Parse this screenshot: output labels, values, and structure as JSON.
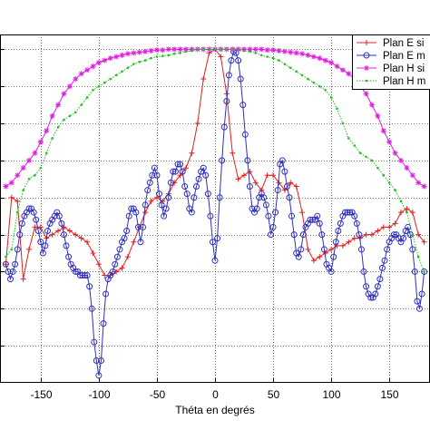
{
  "chart_data": {
    "type": "line",
    "title": "",
    "xlabel": "Théta en degrés",
    "ylabel": "",
    "xlim": [
      -185,
      185
    ],
    "ylim": [
      -45,
      2
    ],
    "x_ticks": [
      -150,
      -100,
      -50,
      0,
      50,
      100,
      150
    ],
    "y_ticks": [
      -40,
      -35,
      -30,
      -25,
      -20,
      -15,
      -10,
      -5,
      0
    ],
    "grid": true,
    "legend_position": "top-right",
    "series": [
      {
        "name": "Plan E si",
        "color": "#e02020",
        "marker": "plus",
        "x": [
          -180,
          -175,
          -170,
          -165,
          -160,
          -155,
          -150,
          -145,
          -140,
          -135,
          -130,
          -125,
          -120,
          -115,
          -110,
          -105,
          -100,
          -95,
          -90,
          -85,
          -80,
          -75,
          -70,
          -65,
          -60,
          -55,
          -50,
          -45,
          -40,
          -35,
          -30,
          -25,
          -20,
          -15,
          -10,
          -5,
          0,
          5,
          10,
          15,
          20,
          25,
          30,
          35,
          40,
          45,
          50,
          55,
          60,
          65,
          70,
          75,
          80,
          85,
          90,
          95,
          100,
          105,
          110,
          115,
          120,
          125,
          130,
          135,
          140,
          145,
          150,
          155,
          160,
          165,
          170,
          175,
          180
        ],
        "y": [
          -29,
          -20,
          -20.5,
          -31,
          -27,
          -24,
          -24,
          -25.5,
          -25,
          -24.5,
          -24,
          -24.5,
          -25,
          -25.5,
          -26,
          -27.5,
          -29,
          -30.5,
          -30.5,
          -30,
          -29.5,
          -28,
          -26,
          -24,
          -22,
          -20.5,
          -20,
          -20.5,
          -19.5,
          -18,
          -17,
          -16,
          -14,
          -10,
          -4,
          -0.5,
          0,
          -1,
          -6,
          -14,
          -17.5,
          -17,
          -16.5,
          -18,
          -19,
          -17,
          -17,
          -18,
          -19,
          -18,
          -18.5,
          -22,
          -27,
          -28.5,
          -28,
          -27.5,
          -27,
          -26.5,
          -26.5,
          -26,
          -25.5,
          -25.5,
          -25,
          -25,
          -24.5,
          -24,
          -24,
          -23.5,
          -22,
          -21.5,
          -22,
          -25,
          -26
        ]
      },
      {
        "name": "Plan E m",
        "color": "#3030c0",
        "marker": "circle",
        "x": [
          -180,
          -178,
          -176,
          -174,
          -172,
          -170,
          -168,
          -166,
          -164,
          -162,
          -160,
          -158,
          -156,
          -154,
          -152,
          -150,
          -148,
          -146,
          -144,
          -142,
          -140,
          -138,
          -136,
          -134,
          -132,
          -130,
          -128,
          -126,
          -124,
          -122,
          -120,
          -118,
          -116,
          -114,
          -112,
          -110,
          -108,
          -106,
          -104,
          -102,
          -100,
          -98,
          -96,
          -94,
          -92,
          -90,
          -88,
          -86,
          -84,
          -82,
          -80,
          -78,
          -76,
          -74,
          -72,
          -70,
          -68,
          -66,
          -64,
          -62,
          -60,
          -58,
          -56,
          -54,
          -52,
          -50,
          -48,
          -46,
          -44,
          -42,
          -40,
          -38,
          -36,
          -34,
          -32,
          -30,
          -28,
          -26,
          -24,
          -22,
          -20,
          -18,
          -16,
          -14,
          -12,
          -10,
          -8,
          -6,
          -4,
          -2,
          0,
          2,
          4,
          6,
          8,
          10,
          12,
          14,
          16,
          18,
          20,
          22,
          24,
          26,
          28,
          30,
          32,
          34,
          36,
          38,
          40,
          42,
          44,
          46,
          48,
          50,
          52,
          54,
          56,
          58,
          60,
          62,
          64,
          66,
          68,
          70,
          72,
          74,
          76,
          78,
          80,
          82,
          84,
          86,
          88,
          90,
          92,
          94,
          96,
          98,
          100,
          102,
          104,
          106,
          108,
          110,
          112,
          114,
          116,
          118,
          120,
          122,
          124,
          126,
          128,
          130,
          132,
          134,
          136,
          138,
          140,
          142,
          144,
          146,
          148,
          150,
          152,
          154,
          156,
          158,
          160,
          162,
          164,
          166,
          168,
          170,
          172,
          174,
          176,
          178,
          180
        ],
        "y": [
          -29,
          -30,
          -31,
          -30,
          -29,
          -27,
          -25,
          -23.5,
          -22.5,
          -22,
          -21.5,
          -21.5,
          -22,
          -23,
          -24.5,
          -26,
          -27.5,
          -26.5,
          -24.5,
          -23.5,
          -23,
          -22.5,
          -22,
          -22.5,
          -23.5,
          -25,
          -26.5,
          -28,
          -29,
          -29.5,
          -30,
          -30,
          -30.5,
          -30.5,
          -30.5,
          -30.5,
          -32,
          -35,
          -39.5,
          -42,
          -44,
          -42,
          -37,
          -33,
          -31,
          -30.5,
          -30,
          -29,
          -28,
          -27,
          -26,
          -25.5,
          -24.5,
          -22.5,
          -21.5,
          -21.5,
          -22,
          -24,
          -26,
          -24,
          -21,
          -19,
          -18,
          -17,
          -16,
          -17,
          -19.5,
          -21,
          -22.5,
          -21.5,
          -20,
          -18,
          -16.5,
          -16.5,
          -15.5,
          -15.5,
          -16.5,
          -18.5,
          -19.5,
          -21.5,
          -22,
          -20,
          -18.5,
          -17.5,
          -16.5,
          -16,
          -17,
          -19.5,
          -22.5,
          -26,
          -28.5,
          -25.5,
          -20,
          -15,
          -10.5,
          -7,
          -3.5,
          -1.5,
          -0.3,
          -0.5,
          -1.5,
          -4,
          -7.5,
          -11.5,
          -15,
          -18.5,
          -21.5,
          -22,
          -21.5,
          -20,
          -19.5,
          -20,
          -21,
          -22.5,
          -25,
          -24,
          -22,
          -19,
          -15.5,
          -15,
          -16.5,
          -18.5,
          -20,
          -22.5,
          -25,
          -27.5,
          -28,
          -27,
          -25,
          -24,
          -23.5,
          -23,
          -23,
          -23,
          -22.5,
          -23.5,
          -25,
          -27,
          -29,
          -29.5,
          -30,
          -28,
          -26,
          -24.5,
          -23.5,
          -22.5,
          -22,
          -22,
          -22,
          -22,
          -22.5,
          -23.5,
          -25,
          -27,
          -30,
          -32,
          -33,
          -33.5,
          -33.5,
          -33,
          -32,
          -31,
          -29.5,
          -28.5,
          -27,
          -26,
          -25.5,
          -25,
          -25,
          -25.5,
          -26,
          -25.5,
          -24.5,
          -24,
          -25,
          -27,
          -30,
          -34,
          -35,
          -33,
          -30
        ]
      },
      {
        "name": "Plan H si",
        "color": "#e020e0",
        "marker": "asterisk",
        "x": [
          -180,
          -175,
          -170,
          -165,
          -160,
          -155,
          -150,
          -145,
          -140,
          -135,
          -130,
          -125,
          -120,
          -115,
          -110,
          -105,
          -100,
          -95,
          -90,
          -85,
          -80,
          -75,
          -70,
          -65,
          -60,
          -55,
          -50,
          -45,
          -40,
          -35,
          -30,
          -25,
          -20,
          -15,
          -10,
          -5,
          0,
          5,
          10,
          15,
          20,
          25,
          30,
          35,
          40,
          45,
          50,
          55,
          60,
          65,
          70,
          75,
          80,
          85,
          90,
          95,
          100,
          105,
          110,
          115,
          120,
          125,
          130,
          135,
          140,
          145,
          150,
          155,
          160,
          165,
          170,
          175,
          180
        ],
        "y": [
          -18.5,
          -18,
          -17,
          -16,
          -15,
          -14,
          -12.5,
          -11,
          -9,
          -7.5,
          -6,
          -5,
          -4,
          -3.3,
          -2.8,
          -2.3,
          -1.8,
          -1.5,
          -1.2,
          -1,
          -0.8,
          -0.6,
          -0.5,
          -0.4,
          -0.3,
          -0.2,
          -0.1,
          -0.1,
          0,
          0,
          0,
          0,
          0,
          0,
          0,
          0,
          0,
          0,
          0,
          0,
          0,
          0,
          0,
          0,
          0,
          -0.1,
          -0.1,
          -0.2,
          -0.3,
          -0.4,
          -0.5,
          -0.6,
          -0.8,
          -1,
          -1.2,
          -1.5,
          -1.8,
          -2.3,
          -2.8,
          -3.3,
          -4,
          -5,
          -6,
          -7.5,
          -9,
          -11,
          -12.5,
          -14,
          -15,
          -16,
          -17,
          -18,
          -18.5
        ]
      },
      {
        "name": "Plan H m",
        "color": "#20c020",
        "marker": "dot",
        "x": [
          -180,
          -175,
          -170,
          -165,
          -160,
          -155,
          -150,
          -145,
          -140,
          -135,
          -130,
          -125,
          -120,
          -115,
          -110,
          -105,
          -100,
          -95,
          -90,
          -85,
          -80,
          -75,
          -70,
          -65,
          -60,
          -55,
          -50,
          -45,
          -40,
          -35,
          -30,
          -25,
          -20,
          -15,
          -10,
          -5,
          0,
          5,
          10,
          15,
          20,
          25,
          30,
          35,
          40,
          45,
          50,
          55,
          60,
          65,
          70,
          75,
          80,
          85,
          90,
          95,
          100,
          105,
          110,
          115,
          120,
          125,
          130,
          135,
          140,
          145,
          150,
          155,
          160,
          165,
          170,
          175,
          180
        ],
        "y": [
          -28,
          -27,
          -22,
          -19,
          -17.5,
          -17,
          -16,
          -14,
          -12,
          -10.5,
          -9.5,
          -9,
          -8.5,
          -7.5,
          -6.5,
          -5.5,
          -5,
          -4.5,
          -4,
          -3.5,
          -3,
          -2.5,
          -2,
          -1.7,
          -1.5,
          -1.2,
          -1,
          -0.9,
          -0.8,
          -0.6,
          -0.5,
          -0.3,
          -0.2,
          0,
          0,
          0,
          0,
          0,
          0,
          0,
          -0.1,
          -0.2,
          -0.3,
          -0.5,
          -0.8,
          -1,
          -1.2,
          -1.5,
          -2,
          -2.5,
          -3,
          -3.5,
          -4,
          -4.5,
          -5,
          -5.5,
          -6.5,
          -8,
          -10,
          -12,
          -13,
          -14,
          -14.5,
          -15,
          -16,
          -17,
          -18,
          -19,
          -20.5,
          -22,
          -25,
          -28,
          -30
        ]
      }
    ]
  }
}
